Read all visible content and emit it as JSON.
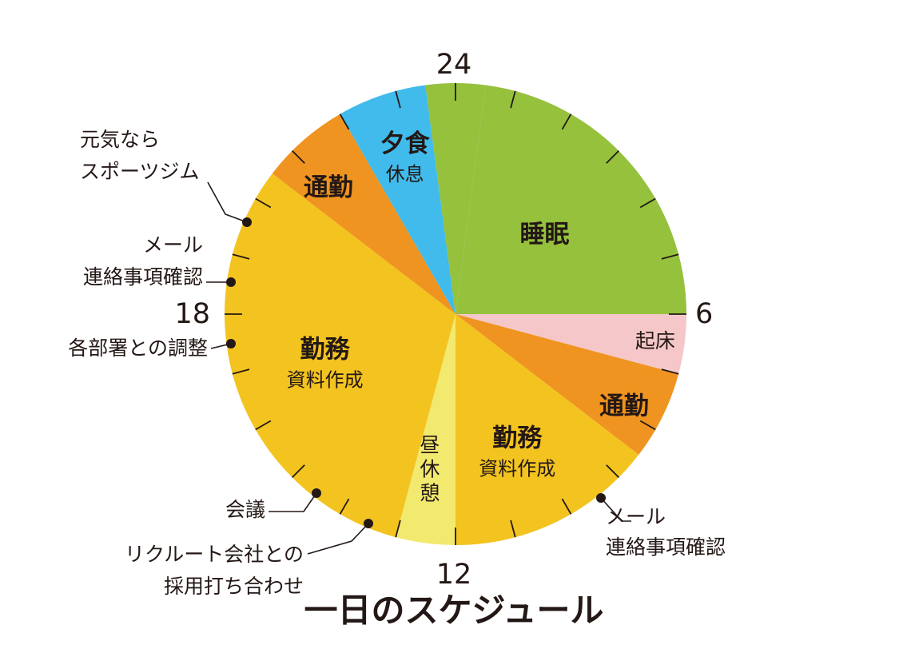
{
  "chart_data": {
    "type": "pie",
    "title": "一日のスケジュール",
    "clock_hours": 24,
    "hour_labels": [
      {
        "hour": 24,
        "text": "24"
      },
      {
        "hour": 6,
        "text": "6"
      },
      {
        "hour": 12,
        "text": "12"
      },
      {
        "hour": 18,
        "text": "18"
      }
    ],
    "segments": [
      {
        "start": 0.5,
        "end": 6,
        "color": "#95c13d",
        "label_main": "睡眠",
        "label_sub": ""
      },
      {
        "start": 6,
        "end": 7,
        "color": "#f5c7c9",
        "label_main": "",
        "label_sub": "起床"
      },
      {
        "start": 7,
        "end": 8.5,
        "color": "#ef9420",
        "label_main": "通勤",
        "label_sub": ""
      },
      {
        "start": 8.5,
        "end": 12,
        "color": "#f3c320",
        "label_main": "勤務",
        "label_sub": "資料作成"
      },
      {
        "start": 12,
        "end": 13,
        "color": "#f2e96f",
        "label_main": "",
        "label_sub": "昼休憩"
      },
      {
        "start": 13,
        "end": 20.5,
        "color": "#f3c320",
        "label_main": "勤務",
        "label_sub": "資料作成"
      },
      {
        "start": 20.5,
        "end": 22,
        "color": "#ef9420",
        "label_main": "通勤",
        "label_sub": ""
      },
      {
        "start": 22,
        "end": 23.5,
        "color": "#40bbeb",
        "label_main": "夕食",
        "label_sub": "休息"
      },
      {
        "start": 23.5,
        "end": 24.5,
        "color": "#95c13d",
        "label_main": "",
        "label_sub": ""
      }
    ],
    "annotations": [
      {
        "hour": 9,
        "lines": [
          "メール",
          "連絡事項確認"
        ]
      },
      {
        "hour": 14,
        "lines": [
          "リクルート会社との",
          "採用打ち合わせ"
        ]
      },
      {
        "hour": 15,
        "lines": [
          "会議"
        ]
      },
      {
        "hour": 18.5,
        "lines": [
          "各部署との調整"
        ]
      },
      {
        "hour": 19.5,
        "lines": [
          "メール",
          "連絡事項確認"
        ]
      },
      {
        "hour": 21,
        "lines": [
          "元気なら",
          "スポーツジム"
        ]
      }
    ]
  }
}
